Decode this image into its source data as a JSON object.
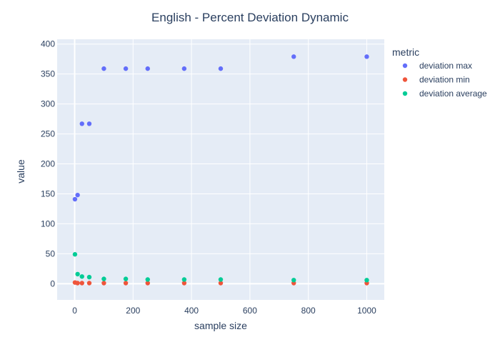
{
  "chart_data": {
    "type": "scatter",
    "title": "English - Percent Deviation Dynamic",
    "xlabel": "sample size",
    "ylabel": "value",
    "xlim": [
      -60,
      1060
    ],
    "ylim": [
      -27,
      408
    ],
    "x_ticks": [
      0,
      200,
      400,
      600,
      800,
      1000
    ],
    "y_ticks": [
      0,
      50,
      100,
      150,
      200,
      250,
      300,
      350,
      400
    ],
    "grid": true,
    "legend_title": "metric",
    "legend_position": "right",
    "colors": {
      "plot_bg": "#e5ecf6",
      "grid": "#ffffff",
      "text": "#2a3f5f"
    },
    "series": [
      {
        "name": "deviation max",
        "color": "#636efa",
        "points": [
          [
            1,
            141
          ],
          [
            10,
            148
          ],
          [
            25,
            267
          ],
          [
            50,
            267
          ],
          [
            100,
            359
          ],
          [
            175,
            359
          ],
          [
            250,
            359
          ],
          [
            375,
            359
          ],
          [
            500,
            359
          ],
          [
            750,
            379
          ],
          [
            1000,
            379
          ]
        ]
      },
      {
        "name": "deviation min",
        "color": "#ef553b",
        "points": [
          [
            1,
            2
          ],
          [
            10,
            1
          ],
          [
            25,
            1
          ],
          [
            50,
            1
          ],
          [
            100,
            1
          ],
          [
            175,
            1
          ],
          [
            250,
            1
          ],
          [
            375,
            1
          ],
          [
            500,
            1
          ],
          [
            750,
            1
          ],
          [
            1000,
            1
          ]
        ]
      },
      {
        "name": "deviation average",
        "color": "#00cc96",
        "points": [
          [
            1,
            49
          ],
          [
            10,
            16
          ],
          [
            25,
            12
          ],
          [
            50,
            11
          ],
          [
            100,
            8
          ],
          [
            175,
            8
          ],
          [
            250,
            7
          ],
          [
            375,
            7
          ],
          [
            500,
            7
          ],
          [
            750,
            6
          ],
          [
            1000,
            6
          ]
        ]
      }
    ]
  }
}
